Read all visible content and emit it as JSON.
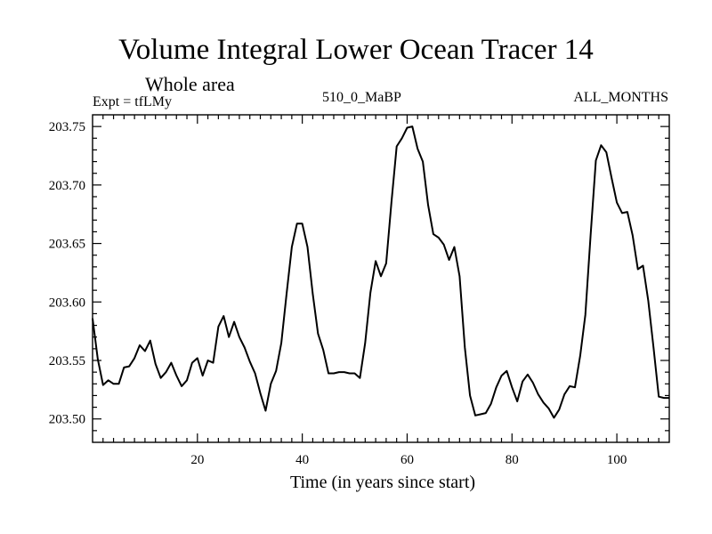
{
  "header": {
    "title": "Volume Integral Lower Ocean Tracer 14",
    "region": "Whole area",
    "experiment": "Expt = tfLMy",
    "run": "510_0_MaBP",
    "period": "ALL_MONTHS"
  },
  "chart_data": {
    "type": "line",
    "title": "Volume Integral Lower Ocean Tracer 14",
    "subtitle": "Whole area",
    "xlabel": "Time (in years since start)",
    "ylabel": "",
    "xlim": [
      0,
      110
    ],
    "ylim": [
      203.48,
      203.76
    ],
    "xticks": [
      20,
      40,
      60,
      80,
      100
    ],
    "xtick_labels": [
      "20",
      "40",
      "60",
      "80",
      "100"
    ],
    "yticks": [
      203.5,
      203.55,
      203.6,
      203.65,
      203.7,
      203.75
    ],
    "ytick_labels": [
      "203.50",
      "203.55",
      "203.60",
      "203.65",
      "203.70",
      "203.75"
    ],
    "grid": false,
    "series": [
      {
        "name": "Tracer 14",
        "x": [
          0,
          1,
          2,
          3,
          4,
          5,
          6,
          7,
          8,
          9,
          10,
          11,
          12,
          13,
          14,
          15,
          16,
          17,
          18,
          19,
          20,
          21,
          22,
          23,
          24,
          25,
          26,
          27,
          28,
          29,
          30,
          31,
          32,
          33,
          34,
          35,
          36,
          37,
          38,
          39,
          40,
          41,
          42,
          43,
          44,
          45,
          46,
          47,
          48,
          49,
          50,
          51,
          52,
          53,
          54,
          55,
          56,
          57,
          58,
          59,
          60,
          61,
          62,
          63,
          64,
          65,
          66,
          67,
          68,
          69,
          70,
          71,
          72,
          73,
          74,
          75,
          76,
          77,
          78,
          79,
          80,
          81,
          82,
          83,
          84,
          85,
          86,
          87,
          88,
          89,
          90,
          91,
          92,
          93,
          94,
          95,
          96,
          97,
          98,
          99,
          100,
          101,
          102,
          103,
          104,
          105,
          106,
          107,
          108,
          109,
          110
        ],
        "values": [
          203.586,
          203.551,
          203.529,
          203.533,
          203.53,
          203.53,
          203.544,
          203.545,
          203.552,
          203.563,
          203.558,
          203.567,
          203.547,
          203.535,
          203.54,
          203.548,
          203.537,
          203.528,
          203.533,
          203.548,
          203.552,
          203.537,
          203.55,
          203.548,
          203.579,
          203.588,
          203.57,
          203.583,
          203.57,
          203.561,
          203.549,
          203.539,
          203.522,
          203.507,
          203.53,
          203.541,
          203.565,
          203.607,
          203.647,
          203.667,
          203.667,
          203.647,
          203.607,
          203.573,
          203.559,
          203.539,
          203.539,
          203.54,
          203.54,
          203.539,
          203.539,
          203.535,
          203.565,
          203.608,
          203.635,
          203.622,
          203.633,
          203.685,
          203.733,
          203.74,
          203.749,
          203.75,
          203.731,
          203.72,
          203.683,
          203.658,
          203.655,
          203.649,
          203.636,
          203.647,
          203.622,
          203.561,
          203.52,
          203.503,
          203.504,
          203.505,
          203.513,
          203.527,
          203.537,
          203.541,
          203.527,
          203.515,
          203.532,
          203.538,
          203.531,
          203.521,
          203.514,
          203.509,
          203.501,
          203.508,
          203.521,
          203.528,
          203.527,
          203.554,
          203.589,
          203.657,
          203.721,
          203.734,
          203.728,
          203.706,
          203.685,
          203.676,
          203.677,
          203.657,
          203.628,
          203.631,
          203.601,
          203.561,
          203.519,
          203.518,
          203.518
        ]
      }
    ]
  }
}
